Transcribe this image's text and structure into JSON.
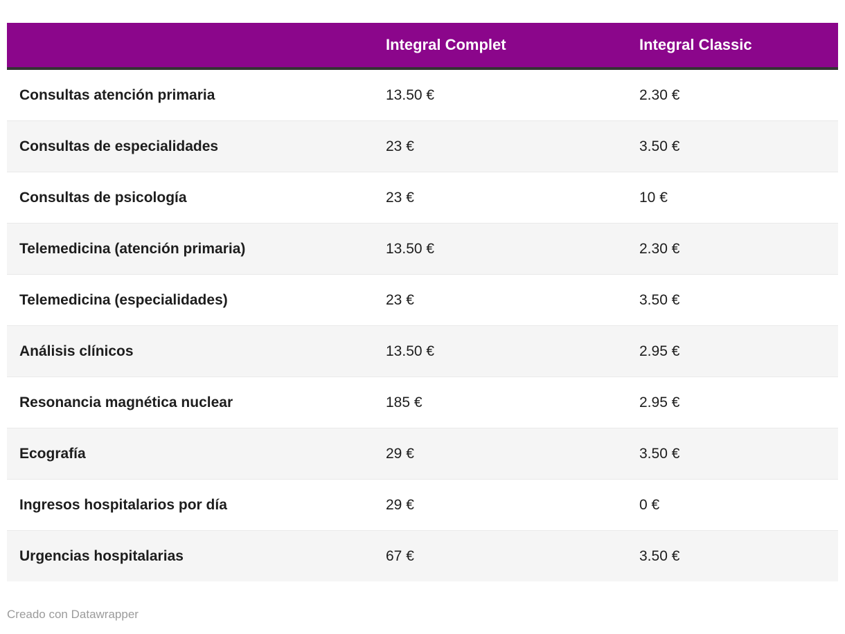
{
  "colors": {
    "header_bg": "#8b068b",
    "header_text": "#ffffff",
    "header_border": "#333333",
    "alt_row_bg": "#f5f5f5",
    "row_divider": "#e9e9e9",
    "body_text": "#1d1d1d",
    "footer_text": "#9b9b9b"
  },
  "chart_data": {
    "type": "table",
    "columns": [
      "",
      "Integral Complet",
      "Integral Classic"
    ],
    "rows": [
      {
        "label": "Consultas atención primaria",
        "complet": "13.50 €",
        "classic": "2.30 €"
      },
      {
        "label": "Consultas de especialidades",
        "complet": "23 €",
        "classic": "3.50 €"
      },
      {
        "label": "Consultas de psicología",
        "complet": "23 €",
        "classic": "10 €"
      },
      {
        "label": "Telemedicina (atención primaria)",
        "complet": "13.50 €",
        "classic": "2.30 €"
      },
      {
        "label": "Telemedicina (especialidades)",
        "complet": "23 €",
        "classic": "3.50 €"
      },
      {
        "label": "Análisis clínicos",
        "complet": "13.50 €",
        "classic": "2.95 €"
      },
      {
        "label": "Resonancia magnética nuclear",
        "complet": "185 €",
        "classic": "2.95 €"
      },
      {
        "label": "Ecografía",
        "complet": "29 €",
        "classic": "3.50 €"
      },
      {
        "label": "Ingresos hospitalarios por día",
        "complet": "29 €",
        "classic": "0 €"
      },
      {
        "label": "Urgencias hospitalarias",
        "complet": "67 €",
        "classic": "3.50 €"
      }
    ],
    "legend_position": "none",
    "grid": "zebra-rows"
  },
  "footer": {
    "text": "Creado con Datawrapper"
  }
}
